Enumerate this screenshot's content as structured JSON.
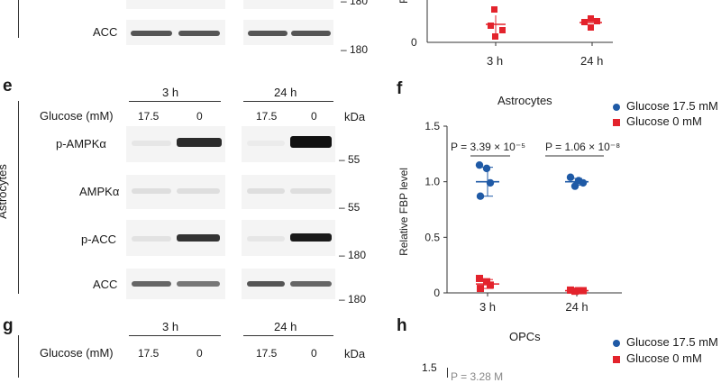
{
  "panel_labels": {
    "e": "e",
    "f": "f",
    "g": "g",
    "h": "h"
  },
  "top_blot": {
    "row_label": "ACC",
    "kda_180_top": "– 180",
    "kda_180": "– 180"
  },
  "blot_e": {
    "time_3h": "3 h",
    "time_24h": "24 h",
    "glucose_label": "Glucose (mM)",
    "conc_17_5_a": "17.5",
    "conc_0_a": "0",
    "conc_17_5_b": "17.5",
    "conc_0_b": "0",
    "kda": "kDa",
    "side_label": "Astrocytes",
    "rows": [
      "p-AMPKα",
      "AMPKα",
      "p-ACC",
      "ACC"
    ],
    "markers": [
      "– 55",
      "– 55",
      "– 180",
      "– 180"
    ]
  },
  "blot_g": {
    "time_3h": "3 h",
    "time_24h": "24 h",
    "glucose_label": "Glucose (mM)",
    "conc_17_5_a": "17.5",
    "conc_0_a": "0",
    "conc_17_5_b": "17.5",
    "conc_0_b": "0",
    "kda": "kDa"
  },
  "chart_top": {
    "ylabel_fragment": "R",
    "y_tick_0": "0",
    "categories": [
      "3 h",
      "24 h"
    ]
  },
  "chart_f_text": {
    "title": "Astrocytes",
    "ylabel": "Relative FBP level",
    "legend_17_5": "Glucose 17.5 mM",
    "legend_0": "Glucose 0 mM",
    "p_3h": "P = 3.39 × 10⁻⁵",
    "p_24h": "P = 1.06 × 10⁻⁸"
  },
  "chart_h_text": {
    "title": "OPCs",
    "legend_17_5": "Glucose 17.5 mM",
    "legend_0": "Glucose 0 mM",
    "y_tick_top": "1.5",
    "p_fragment": "P = 3.28 M"
  },
  "colors": {
    "blue": "#1f5aa6",
    "red": "#e3232c"
  },
  "chart_data": [
    {
      "type": "scatter",
      "title": "Astrocytes",
      "xlabel": "",
      "ylabel": "Relative FBP level",
      "categories": [
        "3 h",
        "24 h"
      ],
      "ylim": [
        0,
        1.5
      ],
      "yticks": [
        "0",
        "0.5",
        "1.0",
        "1.5"
      ],
      "legend": "top-right",
      "series": [
        {
          "name": "Glucose 17.5 mM",
          "color": "#1f5aa6",
          "marker": "circle",
          "points": [
            [
              1.15,
              1.12,
              0.99,
              0.87
            ],
            [
              1.04,
              1.01,
              0.99,
              0.96
            ]
          ],
          "mean": [
            1.0,
            1.0
          ],
          "sd": [
            0.13,
            0.03
          ]
        },
        {
          "name": "Glucose 0 mM",
          "color": "#e3232c",
          "marker": "square",
          "points": [
            [
              0.13,
              0.1,
              0.07,
              0.04
            ],
            [
              0.025,
              0.02,
              0.02,
              0.015
            ]
          ],
          "mean": [
            0.08,
            0.02
          ],
          "sd": [
            0.04,
            0.005
          ]
        }
      ],
      "annotations": [
        "P = 3.39 × 10⁻⁵",
        "P = 1.06 × 10⁻⁸"
      ]
    },
    {
      "type": "scatter",
      "title": "",
      "categories": [
        "3 h",
        "24 h"
      ],
      "series": [
        {
          "name": "Glucose 0 mM",
          "color": "#e3232c",
          "marker": "square",
          "points": [
            [
              0.35,
              0.28,
              0.22,
              0.12
            ],
            [
              0.28,
              0.25,
              0.22,
              0.18
            ]
          ],
          "mean": [
            0.24,
            0.24
          ]
        }
      ]
    }
  ]
}
